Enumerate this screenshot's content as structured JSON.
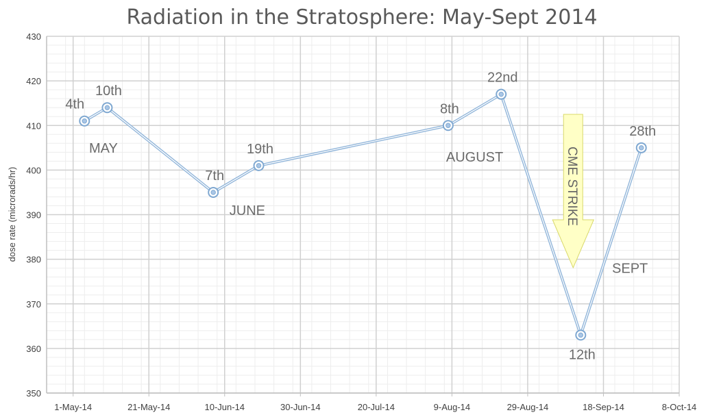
{
  "chart_data": {
    "type": "line",
    "title": "Radiation in the Stratosphere: May-Sept 2014",
    "xlabel": "",
    "ylabel": "dose rate (microrads/hr)",
    "ylim": [
      350,
      430
    ],
    "yticks": [
      350,
      360,
      370,
      380,
      390,
      400,
      410,
      420,
      430
    ],
    "xlim": [
      "2014-04-24",
      "2014-10-08"
    ],
    "xticks": [
      "1-May-14",
      "21-May-14",
      "10-Jun-14",
      "30-Jun-14",
      "20-Jul-14",
      "9-Aug-14",
      "29-Aug-14",
      "18-Sep-14",
      "8-Oct-14"
    ],
    "xtick_dates": [
      "2014-05-01",
      "2014-05-21",
      "2014-06-10",
      "2014-06-30",
      "2014-07-20",
      "2014-08-09",
      "2014-08-29",
      "2014-09-18",
      "2014-10-08"
    ],
    "grid": true,
    "series": [
      {
        "x": [
          "2014-05-04",
          "2014-05-10",
          "2014-06-07",
          "2014-06-19",
          "2014-08-08",
          "2014-08-22",
          "2014-09-12",
          "2014-09-28"
        ],
        "y": [
          411,
          414,
          395,
          401,
          410,
          417,
          363,
          405
        ],
        "labels": [
          "4th",
          "10th",
          "7th",
          "19th",
          "8th",
          "22nd",
          "12th",
          "28th"
        ],
        "color": "#8fb4d9"
      }
    ],
    "annotations": [
      {
        "text": "MAY",
        "x": "2014-05-09",
        "y": 405
      },
      {
        "text": "JUNE",
        "x": "2014-06-16",
        "y": 391
      },
      {
        "text": "AUGUST",
        "x": "2014-08-15",
        "y": 403
      },
      {
        "text": "SEPT",
        "x": "2014-09-25",
        "y": 378
      }
    ],
    "arrow": {
      "text": "CME STRIKE",
      "x": "2014-09-10",
      "color": "#ffffc6",
      "stroke": "#d9d96a"
    }
  }
}
